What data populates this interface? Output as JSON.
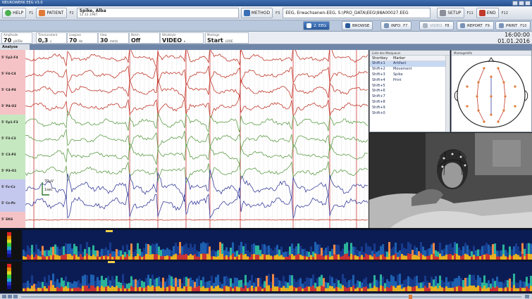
{
  "window": {
    "title": "NEUROWERK EEG V3.0"
  },
  "toolbar": {
    "help": {
      "label": "HELP",
      "fkey": "F1"
    },
    "patient": {
      "label": "PATIENT",
      "fkey": "F2",
      "name": "Spike, Alba",
      "dob": "12.12.1987"
    },
    "method": {
      "label": "METHOD",
      "fkey": "F3",
      "file": "EEG, Erwachsenen-EEG, S:\\PRO_DATA\\EEG\\98A00027.EEG"
    },
    "setup": {
      "label": "SETUP",
      "fkey": "F11"
    },
    "end": {
      "label": "END",
      "fkey": "F12"
    }
  },
  "tabs": [
    {
      "label": "2. EEG",
      "fkey": ""
    },
    {
      "label": "BROWSE",
      "fkey": ""
    },
    {
      "label": "INFO",
      "fkey": "F7"
    },
    {
      "label": "VIDEO",
      "fkey": "F8"
    },
    {
      "label": "REPORT",
      "fkey": "F9"
    },
    {
      "label": "PRINT",
      "fkey": "F10"
    }
  ],
  "params": [
    {
      "label": "Amplitude",
      "value": "70",
      "unit": "µV/Div"
    },
    {
      "label": "Timeconstant",
      "value": "0,3",
      "unit": "s"
    },
    {
      "label": "Lowpass",
      "value": "70",
      "unit": "Hz"
    },
    {
      "label": "View",
      "value": "30",
      "unit": "mm/s"
    },
    {
      "label": "Notch",
      "value": "Off",
      "unit": ""
    },
    {
      "label": "Windstyle",
      "value": "VIDEO",
      "unit": "▾"
    },
    {
      "label": "Montage",
      "value": "Start",
      "unit": "LOOE"
    }
  ],
  "clock": {
    "time": "16:00:00",
    "date": "01.01.2016"
  },
  "analyse": "Analyse",
  "channels": [
    {
      "name": "5' Fp2-F4",
      "color": "#f5c3c6"
    },
    {
      "name": "5' F4-C4",
      "color": "#f5c3c6"
    },
    {
      "name": "5' C4-P4",
      "color": "#f5c3c6"
    },
    {
      "name": "5' P4-O2",
      "color": "#f5c3c6"
    },
    {
      "name": "5' Fp1-F3",
      "color": "#c6e8c0"
    },
    {
      "name": "5' F3-C3",
      "color": "#c6e8c0"
    },
    {
      "name": "5' C3-P3",
      "color": "#c6e8c0"
    },
    {
      "name": "5' P3-O1",
      "color": "#c6e8c0"
    },
    {
      "name": "5' Fz-Cz",
      "color": "#c5c8ee"
    },
    {
      "name": "5' Cz-Pz",
      "color": "#c5c8ee"
    },
    {
      "name": "5' EKG",
      "color": "#f5c3c6"
    }
  ],
  "eeg_annotations": {
    "scale_top": "70µV",
    "scale_bottom": "1sec"
  },
  "markers": {
    "header": "Liste des Marqueurs",
    "columns": [
      "Shortkey",
      "Marker"
    ],
    "rows": [
      {
        "key": "Shift+1",
        "marker": "Artifact"
      },
      {
        "key": "Shift+2",
        "marker": "Movement"
      },
      {
        "key": "Shift+3",
        "marker": "Spike"
      },
      {
        "key": "Shift+4",
        "marker": "Print"
      },
      {
        "key": "Shift+5",
        "marker": ""
      },
      {
        "key": "Shift+6",
        "marker": ""
      },
      {
        "key": "Shift+7",
        "marker": ""
      },
      {
        "key": "Shift+8",
        "marker": ""
      },
      {
        "key": "Shift+9",
        "marker": ""
      },
      {
        "key": "Shift+0",
        "marker": ""
      }
    ]
  },
  "headmap": {
    "header": "Montagehilfe"
  },
  "colors": {
    "red": "#c0392b",
    "green": "#5f9e4a",
    "blue": "#3a3f9c",
    "accent": "#2b5a9c"
  }
}
